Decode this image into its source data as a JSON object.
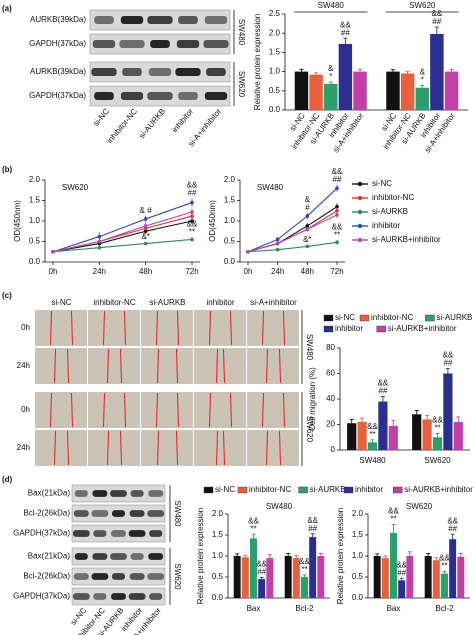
{
  "figure": {
    "panel_labels": [
      "(a)",
      "(b)",
      "(c)",
      "(d)"
    ],
    "blot_a": {
      "rows": [
        "AURKB(39kDa)",
        "GAPDH(37kDa)",
        "AURKB(39kDa)",
        "GAPDH(37kDa)"
      ],
      "cell_lines": [
        "SW480",
        "SW620"
      ],
      "lanes": [
        "si-NC",
        "inhibitor-NC",
        "si-AURKB",
        "inhibitor",
        "si-A+inhibitor"
      ]
    },
    "scratch_c": {
      "columns": [
        "si-NC",
        "inhibitor-NC",
        "si-AURKB",
        "inhibitor",
        "si-A+inhibitor"
      ],
      "rows": [
        "0h",
        "24h",
        "0h",
        "24h"
      ],
      "cell_lines": [
        "SW480",
        "SW620"
      ]
    },
    "blot_d": {
      "rows": [
        "Bax(21kDa)",
        "Bcl-2(26kDa)",
        "GAPDH(37kDa)",
        "Bax(21kDa)",
        "Bcl-2(26kDa)",
        "GAPDH(37kDa)"
      ],
      "cell_lines": [
        "SW480",
        "SW620"
      ],
      "lanes": [
        "si-NC",
        "inhibitor-NC",
        "si-AURKB",
        "inhibitor",
        "si-A+inhibitor"
      ]
    }
  },
  "chart_data": [
    {
      "type": "bar",
      "ylabel": "Relative protein expression",
      "categories": [
        "SW480",
        "SW620"
      ],
      "category_position": "top",
      "bar_labels": true,
      "ylim": [
        0,
        2.5
      ],
      "yticks": [
        {
          "value": 0,
          "label": "0.0"
        },
        {
          "value": 0.5,
          "label": "0.5"
        },
        {
          "value": 1,
          "label": "1.0"
        },
        {
          "value": 1.5,
          "label": "1.5"
        },
        {
          "value": 2,
          "label": "2.0"
        },
        {
          "value": 2.5,
          "label": "2.5"
        }
      ],
      "series": [
        {
          "name": "si-NC",
          "color": "#111111",
          "values": [
            1.0,
            1.0
          ],
          "errors": [
            0.06,
            0.05
          ]
        },
        {
          "name": "inhibitor-NC",
          "color": "#e8603c",
          "values": [
            0.92,
            0.95
          ],
          "errors": [
            0.05,
            0.05
          ]
        },
        {
          "name": "si-AURKB",
          "color": "#2aa06b",
          "values": [
            0.68,
            0.58
          ],
          "errors": [
            0.05,
            0.06
          ],
          "annotations": [
            [
              "&",
              "*"
            ],
            [
              "&",
              "*"
            ]
          ]
        },
        {
          "name": "inhibitor",
          "color": "#2b2f8f",
          "values": [
            1.72,
            1.98
          ],
          "errors": [
            0.15,
            0.18
          ],
          "annotations": [
            [
              "&&",
              "##"
            ],
            [
              "&&",
              "##"
            ]
          ]
        },
        {
          "name": "si-A+inhibitor",
          "color": "#c23fa8",
          "values": [
            1.0,
            1.0
          ],
          "errors": [
            0.06,
            0.06
          ]
        }
      ]
    },
    {
      "type": "line",
      "title": "SW620",
      "ylabel": "OD(450nm)",
      "categories": [
        "0h",
        "24h",
        "48h",
        "72h"
      ],
      "ylim": [
        0,
        2.0
      ],
      "yticks": [
        {
          "value": 0,
          "label": "0.0"
        },
        {
          "value": 0.5,
          "label": "0.5"
        },
        {
          "value": 1,
          "label": "1.0"
        },
        {
          "value": 1.5,
          "label": "1.5"
        },
        {
          "value": 2,
          "label": "2.0"
        }
      ],
      "series": [
        {
          "color": "#111111",
          "values": [
            0.25,
            0.45,
            0.75,
            1.0
          ],
          "errors": [
            0.03,
            0.05,
            0.06,
            0.07
          ]
        },
        {
          "color": "#e8312a",
          "values": [
            0.25,
            0.5,
            0.82,
            1.12
          ],
          "errors": [
            0.03,
            0.05,
            0.06,
            0.08
          ]
        },
        {
          "color": "#2e8b57",
          "values": [
            0.25,
            0.35,
            0.45,
            0.55
          ],
          "errors": [
            0.03,
            0.04,
            0.04,
            0.05
          ],
          "annotations": [
            null,
            null,
            [
              "&*"
            ],
            [
              "&&",
              "**"
            ]
          ]
        },
        {
          "color": "#3344cc",
          "values": [
            0.25,
            0.62,
            1.05,
            1.45
          ],
          "errors": [
            0.03,
            0.1,
            0.08,
            0.1
          ],
          "annotations": [
            null,
            null,
            [
              "& #"
            ],
            [
              "&&",
              "##"
            ]
          ]
        },
        {
          "color": "#b04ab8",
          "values": [
            0.25,
            0.5,
            0.88,
            1.22
          ],
          "errors": [
            0.03,
            0.05,
            0.07,
            0.08
          ]
        }
      ]
    },
    {
      "type": "line",
      "title": "SW480",
      "ylabel": "OD(450nm)",
      "categories": [
        "0h",
        "24h",
        "48h",
        "72h"
      ],
      "legend": "right",
      "ylim": [
        0,
        2.0
      ],
      "yticks": [
        {
          "value": 0,
          "label": "0.0"
        },
        {
          "value": 0.5,
          "label": "0.5"
        },
        {
          "value": 1,
          "label": "1.0"
        },
        {
          "value": 1.5,
          "label": "1.5"
        },
        {
          "value": 2,
          "label": "2.0"
        }
      ],
      "series": [
        {
          "name": "si-NC",
          "color": "#111111",
          "values": [
            0.25,
            0.45,
            0.88,
            1.35
          ],
          "errors": [
            0.03,
            0.05,
            0.07,
            0.08
          ]
        },
        {
          "name": "inhibitor-NC",
          "color": "#e8312a",
          "values": [
            0.25,
            0.45,
            0.8,
            1.25
          ],
          "errors": [
            0.03,
            0.05,
            0.06,
            0.08
          ]
        },
        {
          "name": "si-AURKB",
          "color": "#2e8b57",
          "values": [
            0.25,
            0.3,
            0.38,
            0.48
          ],
          "errors": [
            0.03,
            0.04,
            0.04,
            0.05
          ],
          "annotations": [
            null,
            null,
            [
              "&*"
            ],
            [
              "&&",
              "**"
            ]
          ]
        },
        {
          "name": "inhibitor",
          "color": "#3344cc",
          "values": [
            0.25,
            0.55,
            1.12,
            1.8
          ],
          "errors": [
            0.03,
            0.06,
            0.08,
            0.08
          ],
          "annotations": [
            null,
            null,
            [
              "&",
              "#"
            ],
            [
              "&&",
              "##"
            ]
          ]
        },
        {
          "name": "si-AURKB+inhibitor",
          "color": "#b04ab8",
          "values": [
            0.25,
            0.45,
            0.8,
            1.15
          ],
          "errors": [
            0.03,
            0.05,
            0.06,
            0.08
          ]
        }
      ]
    },
    {
      "type": "bar",
      "ylabel": "Cell migration (%)",
      "categories": [
        "SW480",
        "SW620"
      ],
      "category_position": "bottom",
      "legend": "top",
      "ylim": [
        0,
        80
      ],
      "yticks": [
        0,
        20,
        40,
        60,
        80
      ],
      "series": [
        {
          "name": "si-NC",
          "color": "#111111",
          "values": [
            21,
            28
          ],
          "errors": [
            3,
            3
          ]
        },
        {
          "name": "inhibitor-NC",
          "color": "#e8603c",
          "values": [
            22,
            24
          ],
          "errors": [
            3,
            3
          ]
        },
        {
          "name": "si-AURKB",
          "color": "#2aa06b",
          "values": [
            6,
            10
          ],
          "errors": [
            2,
            3
          ],
          "annotations": [
            [
              "&&",
              "**"
            ],
            [
              "&&",
              "**"
            ]
          ]
        },
        {
          "name": "inhibitor",
          "color": "#2b2f8f",
          "values": [
            38,
            60
          ],
          "errors": [
            4,
            4
          ],
          "annotations": [
            [
              "&&",
              "##"
            ],
            [
              "&&",
              "##"
            ]
          ]
        },
        {
          "name": "si-AURKB+inhibitor",
          "color": "#c23fa8",
          "values": [
            19,
            22
          ],
          "errors": [
            4,
            4
          ]
        }
      ]
    },
    {
      "type": "bar",
      "title": "SW480",
      "ylabel": "Relative protein expression",
      "categories": [
        "Bax",
        "Bcl-2"
      ],
      "category_position": "bottom",
      "legend": "top",
      "ylim": [
        0,
        2.0
      ],
      "yticks": [
        {
          "value": 0,
          "label": "0.0"
        },
        {
          "value": 0.5,
          "label": "0.5"
        },
        {
          "value": 1,
          "label": "1.0"
        },
        {
          "value": 1.5,
          "label": "1.5"
        },
        {
          "value": 2,
          "label": "2.0"
        }
      ],
      "series": [
        {
          "name": "si-NC",
          "color": "#111111",
          "values": [
            1.0,
            1.0
          ],
          "errors": [
            0.05,
            0.06
          ]
        },
        {
          "name": "inhibitor-NC",
          "color": "#e8603c",
          "values": [
            0.97,
            0.95
          ],
          "errors": [
            0.05,
            0.06
          ]
        },
        {
          "name": "si-AURKB",
          "color": "#2aa06b",
          "values": [
            1.42,
            0.5
          ],
          "errors": [
            0.1,
            0.05
          ],
          "annotations": [
            [
              "&&",
              "**"
            ],
            [
              "&&",
              "**"
            ]
          ]
        },
        {
          "name": "inhibitor",
          "color": "#2b2f8f",
          "values": [
            0.45,
            1.45
          ],
          "errors": [
            0.04,
            0.08
          ],
          "annotations": [
            [
              "&&",
              "##"
            ],
            [
              "&&",
              "##"
            ]
          ]
        },
        {
          "name": "si-AURKB+inhibitor",
          "color": "#c23fa8",
          "values": [
            0.95,
            1.0
          ],
          "errors": [
            0.08,
            0.06
          ]
        }
      ]
    },
    {
      "type": "bar",
      "title": "SW620",
      "ylabel": "Relative protein expression",
      "categories": [
        "Bax",
        "Bcl-2"
      ],
      "category_position": "bottom",
      "ylim": [
        0,
        2.0
      ],
      "yticks": [
        {
          "value": 0,
          "label": "0.0"
        },
        {
          "value": 0.5,
          "label": "0.5"
        },
        {
          "value": 1,
          "label": "1.0"
        },
        {
          "value": 1.5,
          "label": "1.5"
        },
        {
          "value": 2,
          "label": "2.0"
        }
      ],
      "series": [
        {
          "color": "#111111",
          "values": [
            1.0,
            1.0
          ],
          "errors": [
            0.05,
            0.06
          ]
        },
        {
          "color": "#e8603c",
          "values": [
            0.95,
            0.9
          ],
          "errors": [
            0.05,
            0.06
          ]
        },
        {
          "color": "#2aa06b",
          "values": [
            1.55,
            0.58
          ],
          "errors": [
            0.2,
            0.05
          ],
          "annotations": [
            [
              "&&",
              "**"
            ],
            [
              "&&",
              "**"
            ]
          ]
        },
        {
          "color": "#2b2f8f",
          "values": [
            0.42,
            1.4
          ],
          "errors": [
            0.05,
            0.12
          ],
          "annotations": [
            [
              "&&",
              "##"
            ],
            [
              "&&",
              "##"
            ]
          ]
        },
        {
          "color": "#c23fa8",
          "values": [
            1.0,
            0.98
          ],
          "errors": [
            0.1,
            0.08
          ]
        }
      ]
    }
  ]
}
